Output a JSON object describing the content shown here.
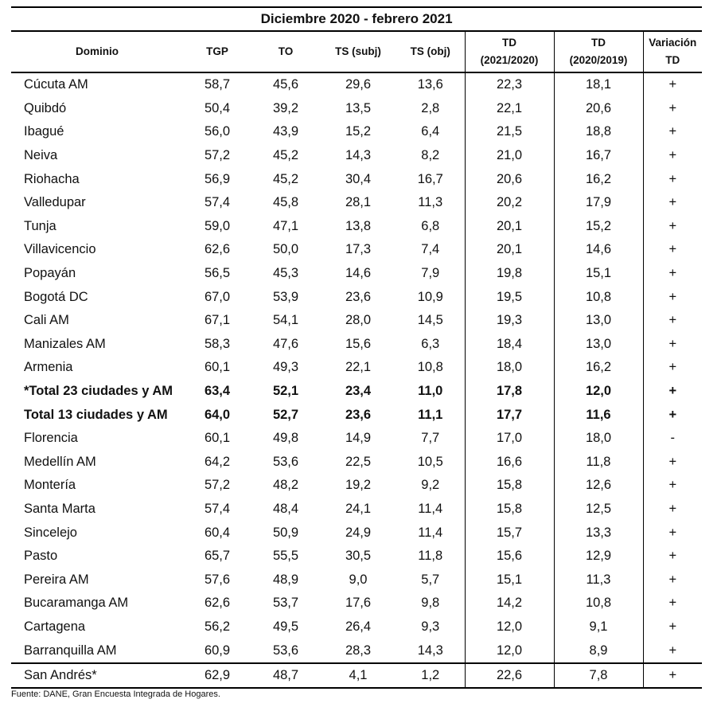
{
  "table": {
    "title": "Diciembre 2020 - febrero  2021",
    "headers": {
      "dominio": "Dominio",
      "tgp": "TGP",
      "to": "TO",
      "ts_subj": "TS (subj)",
      "ts_obj": "TS (obj)",
      "td1_line1": "TD",
      "td1_line2": "(2021/2020)",
      "td2_line1": "TD",
      "td2_line2": "(2020/2019)",
      "var": "Variación TD"
    },
    "rows": [
      {
        "name": "Cúcuta AM",
        "tgp": "58,7",
        "to": "45,6",
        "ts_subj": "29,6",
        "ts_obj": "13,6",
        "td_2021": "22,3",
        "td_2020": "18,1",
        "var": "+"
      },
      {
        "name": "Quibdó",
        "tgp": "50,4",
        "to": "39,2",
        "ts_subj": "13,5",
        "ts_obj": "2,8",
        "td_2021": "22,1",
        "td_2020": "20,6",
        "var": "+"
      },
      {
        "name": "Ibagué",
        "tgp": "56,0",
        "to": "43,9",
        "ts_subj": "15,2",
        "ts_obj": "6,4",
        "td_2021": "21,5",
        "td_2020": "18,8",
        "var": "+"
      },
      {
        "name": "Neiva",
        "tgp": "57,2",
        "to": "45,2",
        "ts_subj": "14,3",
        "ts_obj": "8,2",
        "td_2021": "21,0",
        "td_2020": "16,7",
        "var": "+"
      },
      {
        "name": "Riohacha",
        "tgp": "56,9",
        "to": "45,2",
        "ts_subj": "30,4",
        "ts_obj": "16,7",
        "td_2021": "20,6",
        "td_2020": "16,2",
        "var": "+"
      },
      {
        "name": "Valledupar",
        "tgp": "57,4",
        "to": "45,8",
        "ts_subj": "28,1",
        "ts_obj": "11,3",
        "td_2021": "20,2",
        "td_2020": "17,9",
        "var": "+"
      },
      {
        "name": "Tunja",
        "tgp": "59,0",
        "to": "47,1",
        "ts_subj": "13,8",
        "ts_obj": "6,8",
        "td_2021": "20,1",
        "td_2020": "15,2",
        "var": "+"
      },
      {
        "name": "Villavicencio",
        "tgp": "62,6",
        "to": "50,0",
        "ts_subj": "17,3",
        "ts_obj": "7,4",
        "td_2021": "20,1",
        "td_2020": "14,6",
        "var": "+"
      },
      {
        "name": "Popayán",
        "tgp": "56,5",
        "to": "45,3",
        "ts_subj": "14,6",
        "ts_obj": "7,9",
        "td_2021": "19,8",
        "td_2020": "15,1",
        "var": "+"
      },
      {
        "name": "Bogotá DC",
        "tgp": "67,0",
        "to": "53,9",
        "ts_subj": "23,6",
        "ts_obj": "10,9",
        "td_2021": "19,5",
        "td_2020": "10,8",
        "var": "+"
      },
      {
        "name": "Cali AM",
        "tgp": "67,1",
        "to": "54,1",
        "ts_subj": "28,0",
        "ts_obj": "14,5",
        "td_2021": "19,3",
        "td_2020": "13,0",
        "var": "+"
      },
      {
        "name": "Manizales AM",
        "tgp": "58,3",
        "to": "47,6",
        "ts_subj": "15,6",
        "ts_obj": "6,3",
        "td_2021": "18,4",
        "td_2020": "13,0",
        "var": "+"
      },
      {
        "name": "Armenia",
        "tgp": "60,1",
        "to": "49,3",
        "ts_subj": "22,1",
        "ts_obj": "10,8",
        "td_2021": "18,0",
        "td_2020": "16,2",
        "var": "+"
      },
      {
        "name": "*Total 23 ciudades y AM",
        "tgp": "63,4",
        "to": "52,1",
        "ts_subj": "23,4",
        "ts_obj": "11,0",
        "td_2021": "17,8",
        "td_2020": "12,0",
        "var": "+",
        "bold": true
      },
      {
        "name": "Total 13 ciudades y AM",
        "tgp": "64,0",
        "to": "52,7",
        "ts_subj": "23,6",
        "ts_obj": "11,1",
        "td_2021": "17,7",
        "td_2020": "11,6",
        "var": "+",
        "bold": true
      },
      {
        "name": "Florencia",
        "tgp": "60,1",
        "to": "49,8",
        "ts_subj": "14,9",
        "ts_obj": "7,7",
        "td_2021": "17,0",
        "td_2020": "18,0",
        "var": "-"
      },
      {
        "name": "Medellín AM",
        "tgp": "64,2",
        "to": "53,6",
        "ts_subj": "22,5",
        "ts_obj": "10,5",
        "td_2021": "16,6",
        "td_2020": "11,8",
        "var": "+"
      },
      {
        "name": "Montería",
        "tgp": "57,2",
        "to": "48,2",
        "ts_subj": "19,2",
        "ts_obj": "9,2",
        "td_2021": "15,8",
        "td_2020": "12,6",
        "var": "+"
      },
      {
        "name": "Santa Marta",
        "tgp": "57,4",
        "to": "48,4",
        "ts_subj": "24,1",
        "ts_obj": "11,4",
        "td_2021": "15,8",
        "td_2020": "12,5",
        "var": "+"
      },
      {
        "name": "Sincelejo",
        "tgp": "60,4",
        "to": "50,9",
        "ts_subj": "24,9",
        "ts_obj": "11,4",
        "td_2021": "15,7",
        "td_2020": "13,3",
        "var": "+"
      },
      {
        "name": "Pasto",
        "tgp": "65,7",
        "to": "55,5",
        "ts_subj": "30,5",
        "ts_obj": "11,8",
        "td_2021": "15,6",
        "td_2020": "12,9",
        "var": "+"
      },
      {
        "name": "Pereira AM",
        "tgp": "57,6",
        "to": "48,9",
        "ts_subj": "9,0",
        "ts_obj": "5,7",
        "td_2021": "15,1",
        "td_2020": "11,3",
        "var": "+"
      },
      {
        "name": "Bucaramanga AM",
        "tgp": "62,6",
        "to": "53,7",
        "ts_subj": "17,6",
        "ts_obj": "9,8",
        "td_2021": "14,2",
        "td_2020": "10,8",
        "var": "+"
      },
      {
        "name": "Cartagena",
        "tgp": "56,2",
        "to": "49,5",
        "ts_subj": "26,4",
        "ts_obj": "9,3",
        "td_2021": "12,0",
        "td_2020": "9,1",
        "var": "+"
      },
      {
        "name": "Barranquilla AM",
        "tgp": "60,9",
        "to": "53,6",
        "ts_subj": "28,3",
        "ts_obj": "14,3",
        "td_2021": "12,0",
        "td_2020": "8,9",
        "var": "+"
      },
      {
        "name": "San Andrés*",
        "tgp": "62,9",
        "to": "48,7",
        "ts_subj": "4,1",
        "ts_obj": "1,2",
        "td_2021": "22,6",
        "td_2020": "7,8",
        "var": "+",
        "last": true
      }
    ]
  },
  "source": "Fuente: DANE, Gran Encuesta Integrada de Hogares."
}
